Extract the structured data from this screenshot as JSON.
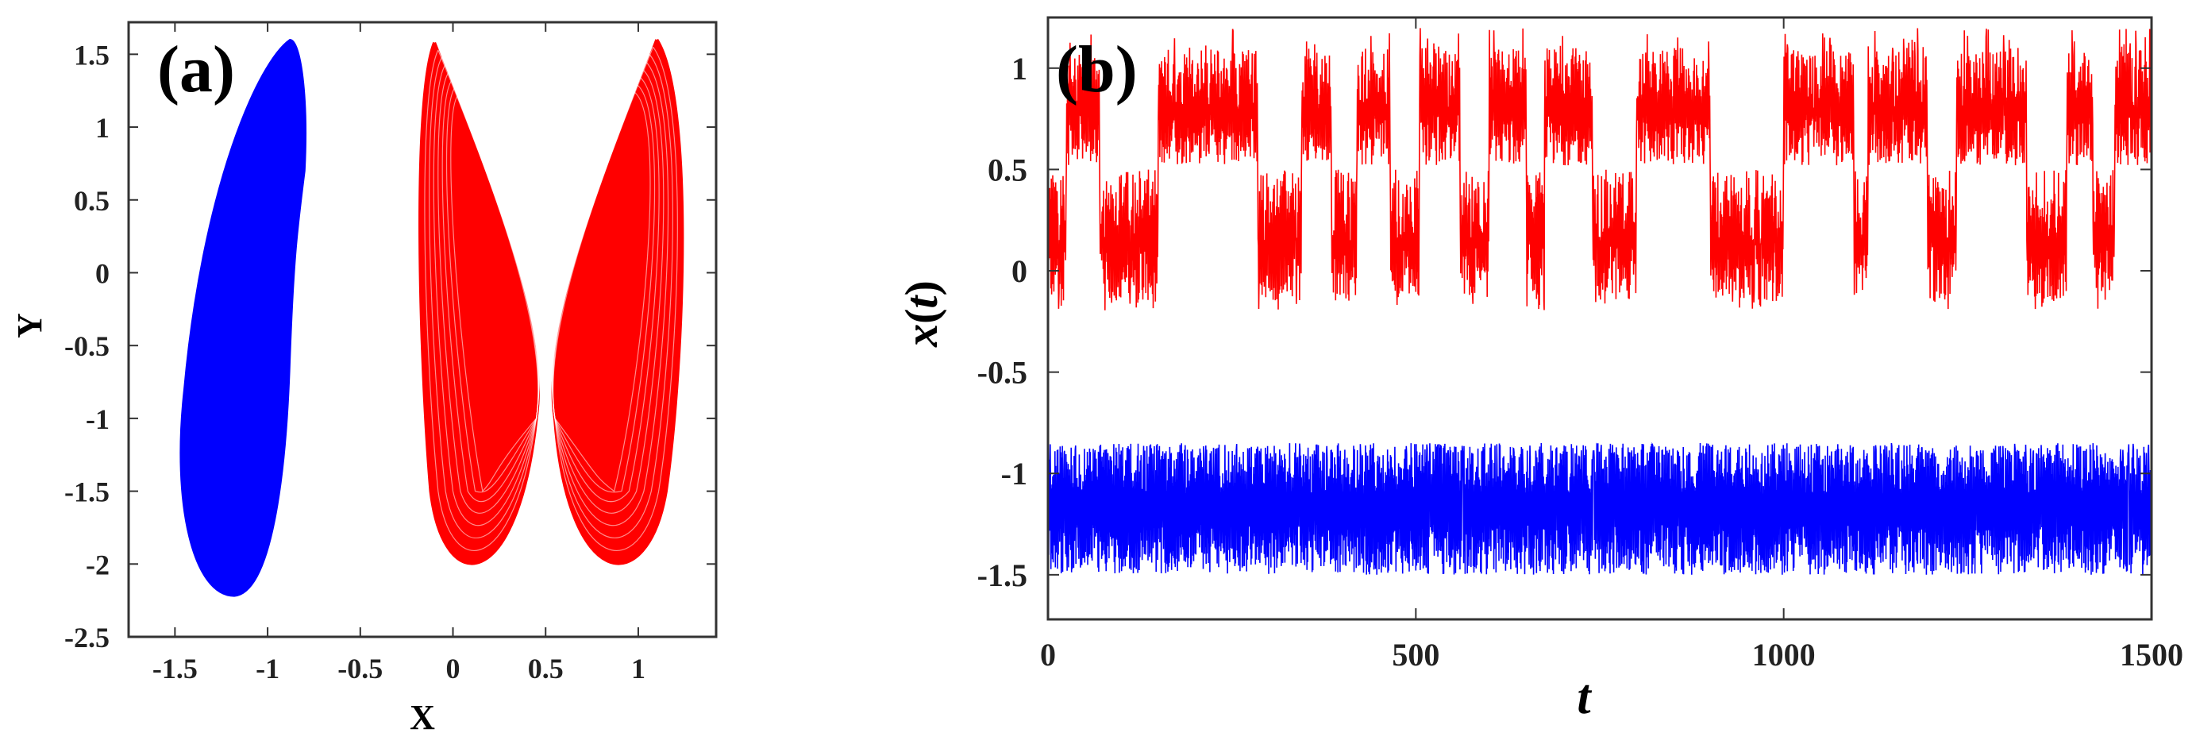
{
  "chart_data": [
    {
      "type": "scatter",
      "panel_label": "(a)",
      "xlabel": "X",
      "ylabel": "Y",
      "xlim": [
        -1.75,
        1.42
      ],
      "ylim": [
        -2.5,
        1.72
      ],
      "xticks": [
        -1.5,
        -1,
        -0.5,
        0,
        0.5,
        1
      ],
      "xtick_labels": [
        "-1.5",
        "-1",
        "-0.5",
        "0",
        "0.5",
        "1"
      ],
      "yticks": [
        -2.5,
        -2,
        -1.5,
        -1,
        -0.5,
        0,
        0.5,
        1,
        1.5
      ],
      "ytick_labels": [
        "-2.5",
        "-2",
        "-1.5",
        "-1",
        "-0.5",
        "0",
        "0.5",
        "1",
        "1.5"
      ],
      "series": [
        {
          "color": "#0000ff",
          "description_points": [
            [
              -0.88,
              1.6
            ],
            [
              -1.0,
              1.3
            ],
            [
              -1.2,
              0.5
            ],
            [
              -1.45,
              -0.8
            ],
            [
              -1.48,
              -1.5
            ],
            [
              -1.35,
              -2.1
            ],
            [
              -1.18,
              -2.22
            ],
            [
              -1.0,
              -1.8
            ],
            [
              -0.88,
              -0.5
            ],
            [
              -0.85,
              0.3
            ],
            [
              -0.8,
              1.0
            ]
          ]
        },
        {
          "color": "#ff0000",
          "description_points": [
            [
              -0.1,
              1.58
            ],
            [
              -0.14,
              0.9
            ],
            [
              -0.1,
              -1.5
            ],
            [
              0.15,
              -2.2
            ],
            [
              0.45,
              -1.0
            ],
            [
              0.5,
              -0.6
            ],
            [
              0.55,
              -1.0
            ],
            [
              0.85,
              -2.2
            ],
            [
              1.2,
              -1.3
            ],
            [
              1.22,
              0.5
            ],
            [
              1.1,
              1.6
            ]
          ]
        }
      ]
    },
    {
      "type": "line",
      "panel_label": "(b)",
      "xlabel": "t",
      "ylabel": "x(t)",
      "xlim": [
        0,
        1500
      ],
      "ylim": [
        -1.72,
        1.25
      ],
      "xticks": [
        0,
        500,
        1000,
        1500
      ],
      "xtick_labels": [
        "0",
        "500",
        "1000",
        "1500"
      ],
      "yticks": [
        -1.5,
        -1,
        -0.5,
        0,
        0.5,
        1
      ],
      "ytick_labels": [
        "-1.5",
        "-1",
        "-0.5",
        "0",
        "0.5",
        "1"
      ],
      "series": [
        {
          "color": "#ff0000",
          "range": [
            -0.2,
            1.2
          ],
          "upper_band": [
            0.5,
            1.2
          ],
          "lower_band": [
            -0.2,
            0.5
          ],
          "upper_intervals": [
            [
              25,
              70
            ],
            [
              150,
              285
            ],
            [
              345,
              385
            ],
            [
              420,
              465
            ],
            [
              505,
              560
            ],
            [
              600,
              650
            ],
            [
              675,
              740
            ],
            [
              800,
              900
            ],
            [
              1000,
              1095
            ],
            [
              1115,
              1195
            ],
            [
              1235,
              1330
            ],
            [
              1385,
              1420
            ],
            [
              1450,
              1500
            ]
          ]
        },
        {
          "color": "#0000ff",
          "range": [
            -1.5,
            -0.82
          ],
          "mean": -1.2
        }
      ]
    }
  ]
}
